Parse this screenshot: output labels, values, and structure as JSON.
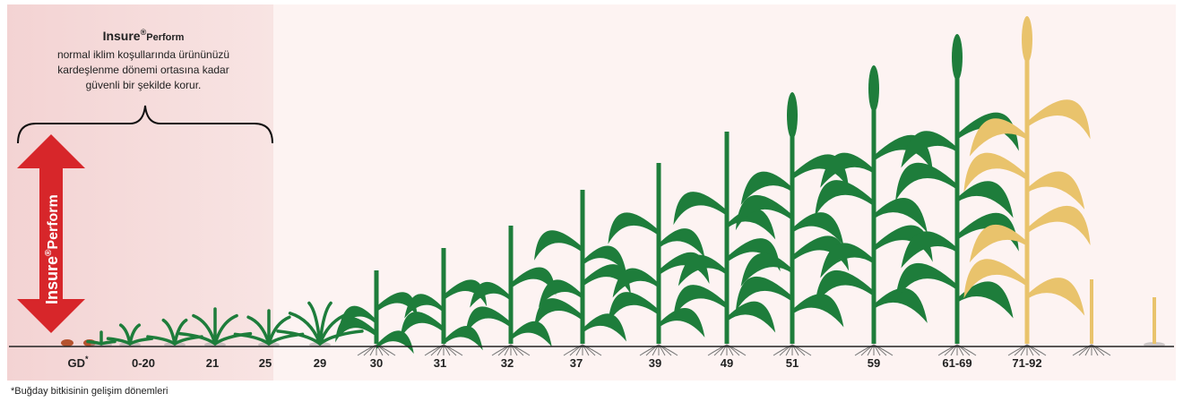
{
  "header": {
    "brand": "Insure",
    "registered": "®",
    "product": "Perform",
    "description": [
      "normal iklim koşullarında ürününüzü",
      "kardeşlenme dönemi ortasına kadar",
      "güvenli bir şekilde korur."
    ]
  },
  "arrow": {
    "brand": "Insure",
    "registered": "®",
    "product": "Perform"
  },
  "stages": [
    {
      "label": "GD",
      "note": "*"
    },
    {
      "label": "0-20"
    },
    {
      "label": "21"
    },
    {
      "label": "25"
    },
    {
      "label": "29"
    },
    {
      "label": "30"
    },
    {
      "label": "31"
    },
    {
      "label": "32"
    },
    {
      "label": "37"
    },
    {
      "label": "39"
    },
    {
      "label": "49"
    },
    {
      "label": "51"
    },
    {
      "label": "59"
    },
    {
      "label": "61-69"
    },
    {
      "label": "71-92"
    }
  ],
  "footnote": "*Buğday bitkisinin gelişim dönemleri"
}
